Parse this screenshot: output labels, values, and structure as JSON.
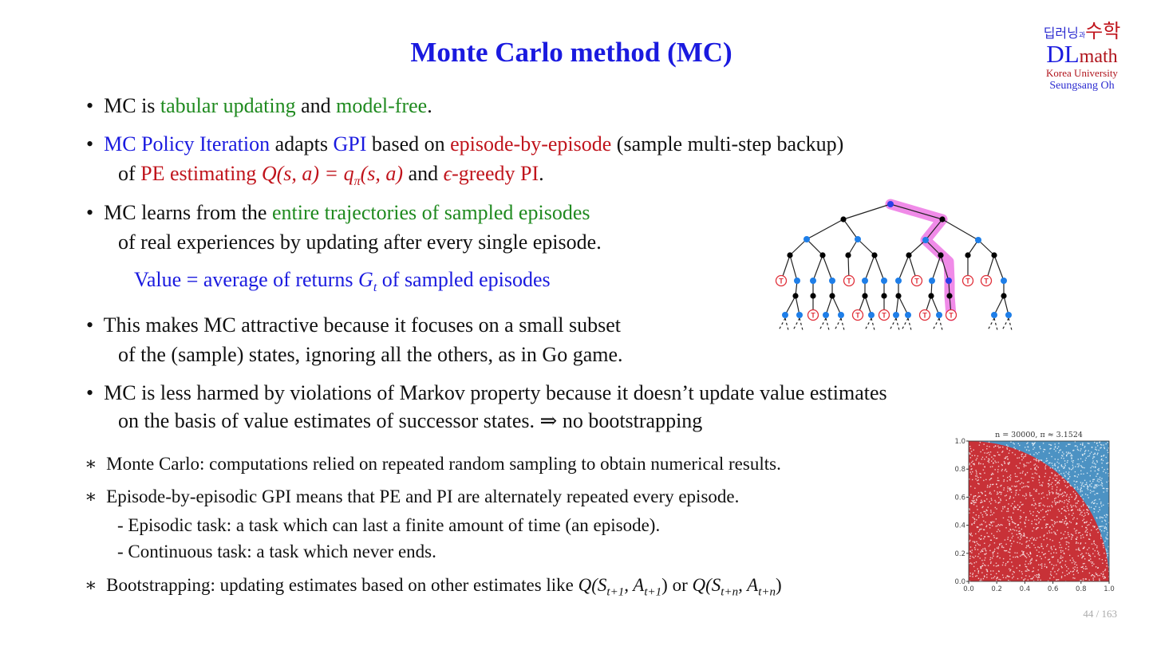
{
  "title": "Monte Carlo method (MC)",
  "logo": {
    "korean_top": "딥러닝",
    "korean_small": "과",
    "korean_big": "수학",
    "dl": "DL",
    "math": "math",
    "university": "Korea University",
    "author": "Seungsang Oh"
  },
  "bullets": [
    {
      "parts": [
        "MC is ",
        "tabular updating",
        " and ",
        "model-free",
        "."
      ]
    },
    {
      "parts": [
        "MC Policy Iteration",
        " adapts ",
        "GPI",
        " based on ",
        "episode-by-episode",
        " (sample multi-step backup)"
      ],
      "line2": [
        "of ",
        "PE estimating ",
        "Q(s, a) = q",
        "π",
        "(s, a)",
        " and ",
        "ϵ",
        "-greedy PI",
        "."
      ]
    },
    {
      "parts": [
        "MC learns from the ",
        "entire trajectories of sampled episodes"
      ],
      "line2": "of real experiences by updating after every single episode.",
      "value_line": [
        "Value = average of returns ",
        "G",
        "t",
        " of sampled episodes"
      ]
    },
    {
      "parts": "This makes MC attractive because it focuses on a small subset",
      "line2": "of the (sample) states, ignoring all the others, as in Go game."
    },
    {
      "parts": "MC is less harmed by violations of Markov property because it doesn’t update value estimates",
      "line2": "on the basis of value estimates of successor states.  ⇒ no bootstrapping"
    }
  ],
  "footnotes": [
    "Monte Carlo: computations relied on repeated random sampling to obtain numerical results.",
    "Episode-by-episodic GPI means that PE and PI are alternately repeated every episode.",
    "- Episodic task: a task which can last a finite amount of time (an episode).",
    "- Continuous task: a task which never ends.",
    "Bootstrapping: updating estimates based on other estimates like "
  ],
  "bootstrap_math": {
    "q1": "Q(S",
    "s1": "t+1",
    ",A": ", A",
    "s2": "t+1",
    ")": ")",
    "or": " or ",
    "q2": "Q(S",
    "s3": "t+n",
    "a2": ", A",
    "s4": "t+n",
    "close": ")"
  },
  "tree": {
    "terminal_label": "T",
    "colors": {
      "state": "#1e7ee8",
      "action": "#000000",
      "terminal": "#e0303a",
      "highlight": "#f08be8",
      "root": "#2a3ee8"
    }
  },
  "chart_data": {
    "type": "scatter",
    "title": "n = 30000, π ≈ 3.1524",
    "n": 30000,
    "pi_estimate": 3.1524,
    "xlim": [
      0,
      1
    ],
    "ylim": [
      0,
      1
    ],
    "xticks": [
      "0.0",
      "0.2",
      "0.4",
      "0.6",
      "0.8",
      "1.0"
    ],
    "yticks": [
      "0.0",
      "0.2",
      "0.4",
      "0.6",
      "0.8",
      "1.0"
    ],
    "series": [
      {
        "region": "inside x²+y²≤1",
        "color": "#d62728"
      },
      {
        "region": "outside",
        "color": "#1f77b4"
      }
    ]
  },
  "page": "44 / 163"
}
